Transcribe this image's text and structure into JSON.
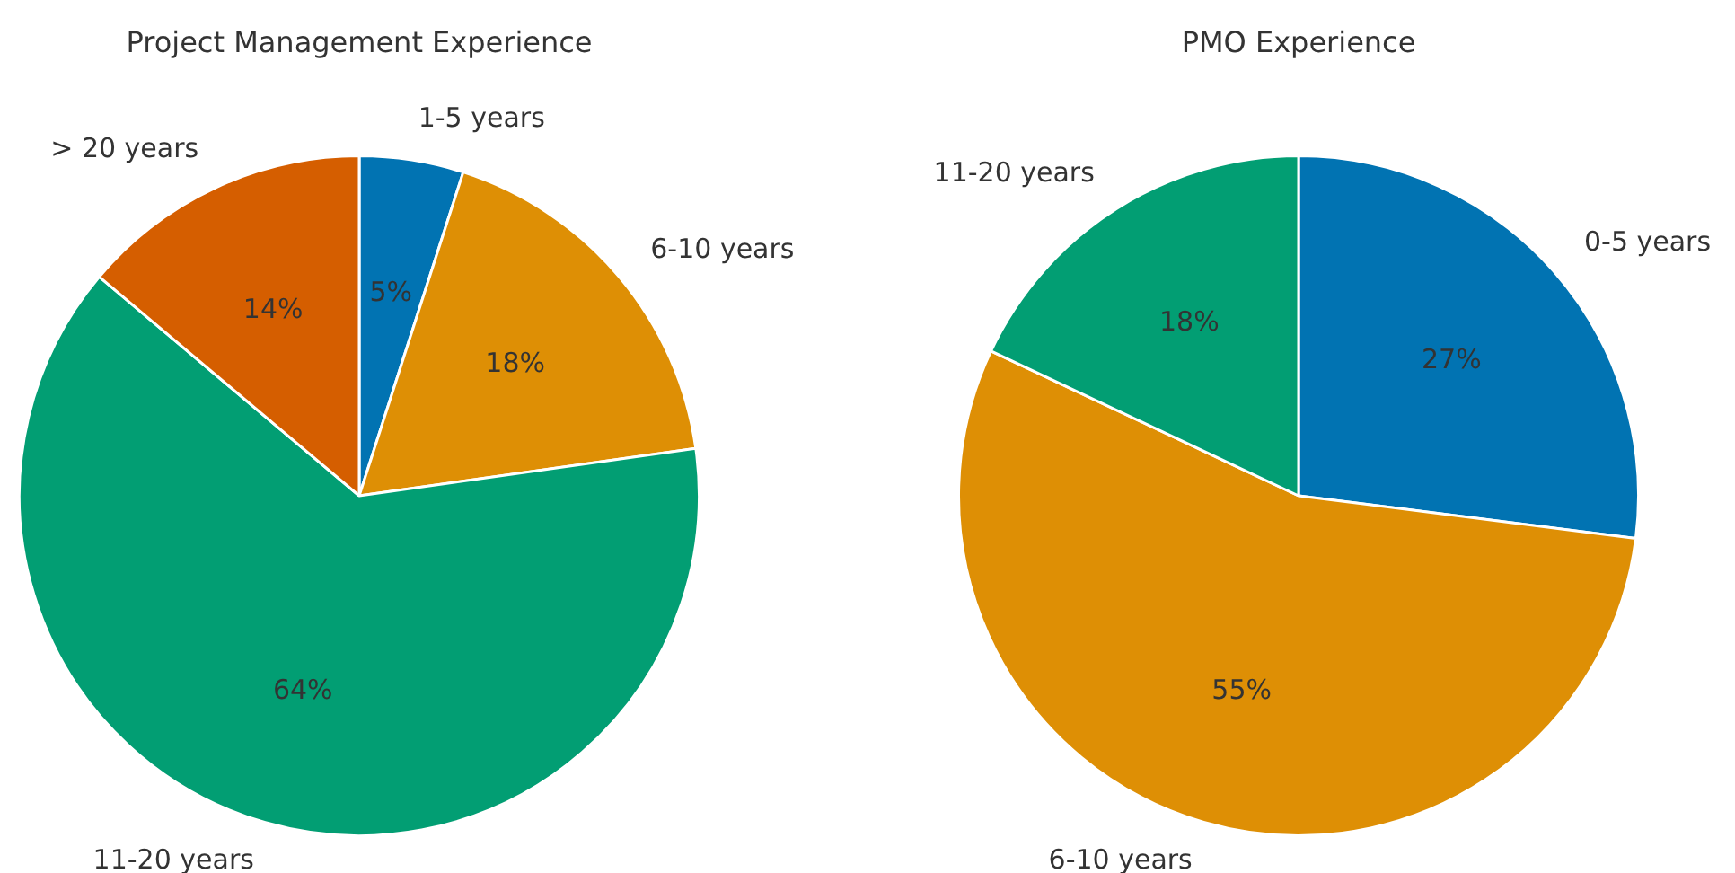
{
  "chart_data": [
    {
      "type": "pie",
      "title": "Project Management Experience",
      "categories": [
        "1-5 years",
        "6-10 years",
        "11-20 years",
        "> 20 years"
      ],
      "values": [
        5,
        18,
        64,
        14
      ],
      "colors": [
        "#0173b2",
        "#de8f05",
        "#029e73",
        "#d55e00"
      ],
      "value_labels": [
        "5%",
        "18%",
        "64%",
        "14%"
      ],
      "legend": false
    },
    {
      "type": "pie",
      "title": "PMO Experience",
      "categories": [
        "0-5 years",
        "6-10 years",
        "11-20 years"
      ],
      "values": [
        27,
        55,
        18
      ],
      "colors": [
        "#0173b2",
        "#de8f05",
        "#029e73"
      ],
      "value_labels": [
        "27%",
        "55%",
        "18%"
      ],
      "legend": false
    }
  ]
}
